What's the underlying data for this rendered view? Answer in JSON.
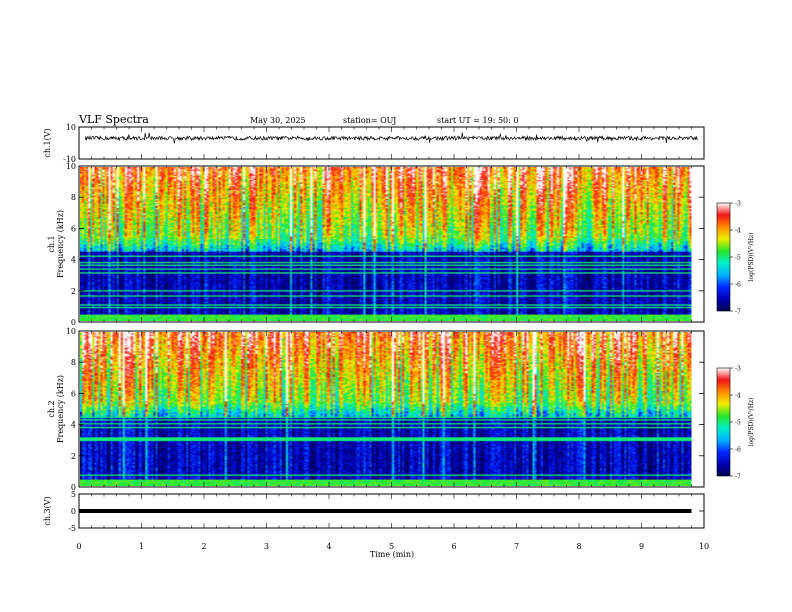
{
  "header": {
    "title": "VLF Spectra",
    "date": "May 30, 2025",
    "station": "station= OUJ",
    "start": "start  UT  =   19: 50: 0"
  },
  "chart_data": [
    {
      "type": "line",
      "panel": "ch1-waveform",
      "ylabel": "ch.1(V)",
      "ylim": [
        -10,
        10
      ],
      "yticks": [
        10,
        -10
      ],
      "xlim": [
        0,
        10
      ],
      "baseline": 3,
      "noise_amplitude": 1.2
    },
    {
      "type": "heatmap",
      "panel": "ch1-spectrogram",
      "ylabel": "ch.1\nFrequency (kHz)",
      "ylim": [
        0,
        10
      ],
      "yticks": [
        0,
        2,
        4,
        6,
        8,
        10
      ],
      "xlim": [
        0,
        9.8
      ],
      "colorbar": {
        "label": "log(PSD)(V²/Hz)",
        "range": [
          -7,
          -3
        ],
        "ticks": [
          -3,
          -4,
          -5,
          -6,
          -7
        ]
      }
    },
    {
      "type": "heatmap",
      "panel": "ch2-spectrogram",
      "ylabel": "ch.2\nFrequency (kHz)",
      "ylim": [
        0,
        10
      ],
      "yticks": [
        0,
        2,
        4,
        6,
        8,
        10
      ],
      "xlim": [
        0,
        9.8
      ],
      "colorbar": {
        "label": "log(PSD)(V²/Hz)",
        "range": [
          -7,
          -3
        ],
        "ticks": [
          -3,
          -4,
          -5,
          -6,
          -7
        ]
      }
    },
    {
      "type": "line",
      "panel": "ch3-waveform",
      "ylabel": "ch.3(V)",
      "ylim": [
        -5,
        5
      ],
      "yticks": [
        5,
        0,
        -5
      ],
      "xlim": [
        0,
        10
      ],
      "baseline": 0,
      "noise_amplitude": 0
    }
  ],
  "xaxis": {
    "label": "Time  (min)",
    "ticks": [
      0,
      1,
      2,
      3,
      4,
      5,
      6,
      7,
      8,
      9,
      10
    ]
  },
  "colors": {
    "colormap": [
      "#000050",
      "#0000b4",
      "#0028ff",
      "#00b4ff",
      "#00f0c8",
      "#28e628",
      "#f0f000",
      "#ff8c00",
      "#f01414",
      "#ffffff"
    ]
  }
}
